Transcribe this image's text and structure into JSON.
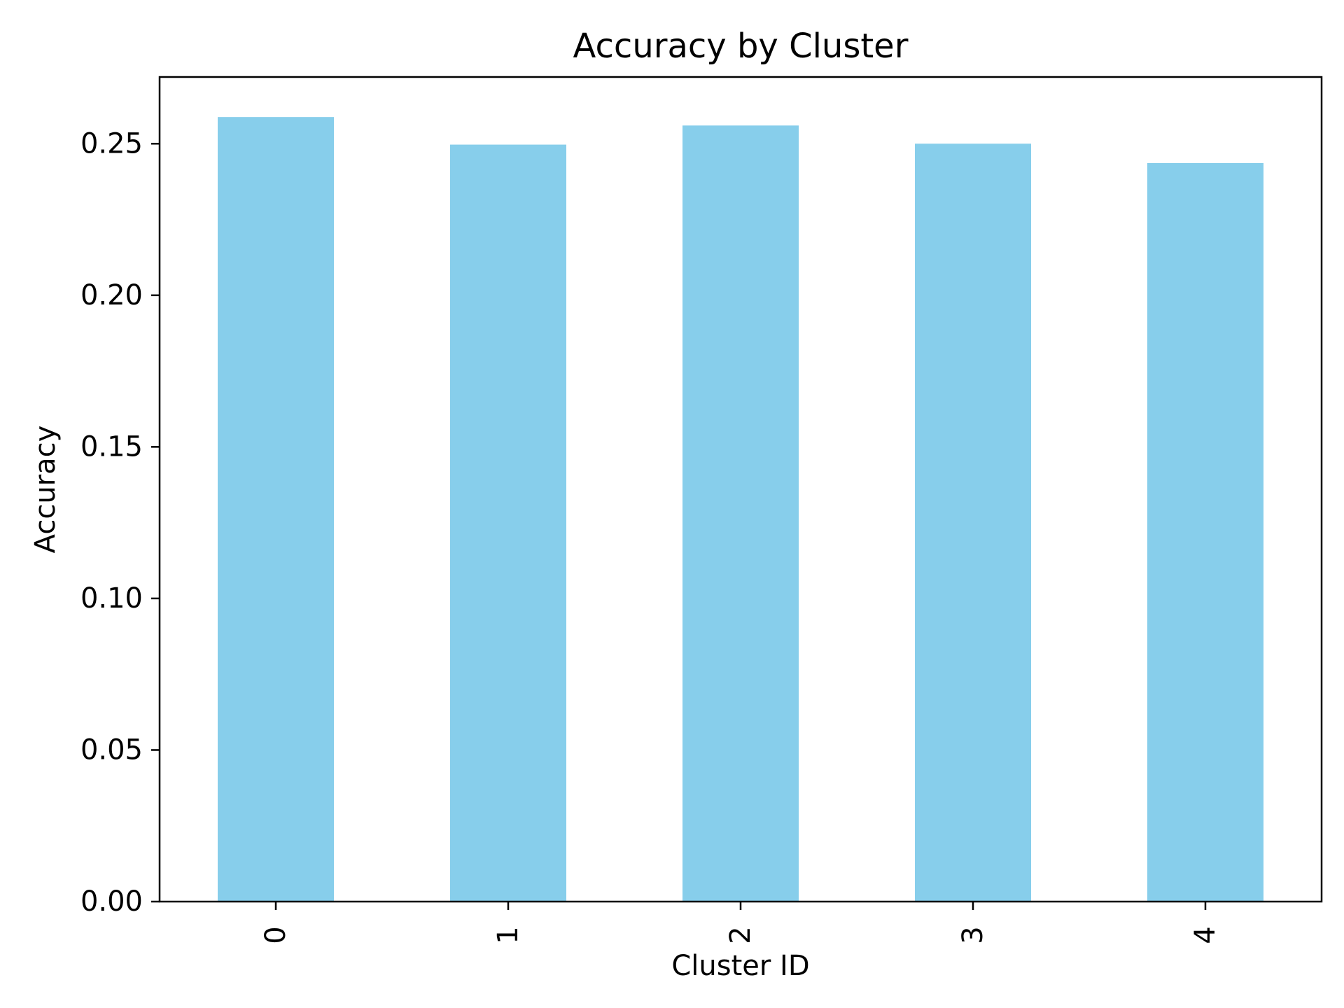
{
  "chart_data": {
    "type": "bar",
    "title": "Accuracy by Cluster",
    "xlabel": "Cluster ID",
    "ylabel": "Accuracy",
    "categories": [
      "0",
      "1",
      "2",
      "3",
      "4"
    ],
    "values": [
      0.2588,
      0.2497,
      0.256,
      0.25,
      0.2436
    ],
    "ylim": [
      0,
      0.272
    ],
    "yticks": [
      0.0,
      0.05,
      0.1,
      0.15,
      0.2,
      0.25
    ],
    "ytick_labels": [
      "0.00",
      "0.05",
      "0.10",
      "0.15",
      "0.20",
      "0.25"
    ],
    "xtick_rotation": "vertical",
    "grid": false,
    "bar_color": "#87CEEB"
  }
}
